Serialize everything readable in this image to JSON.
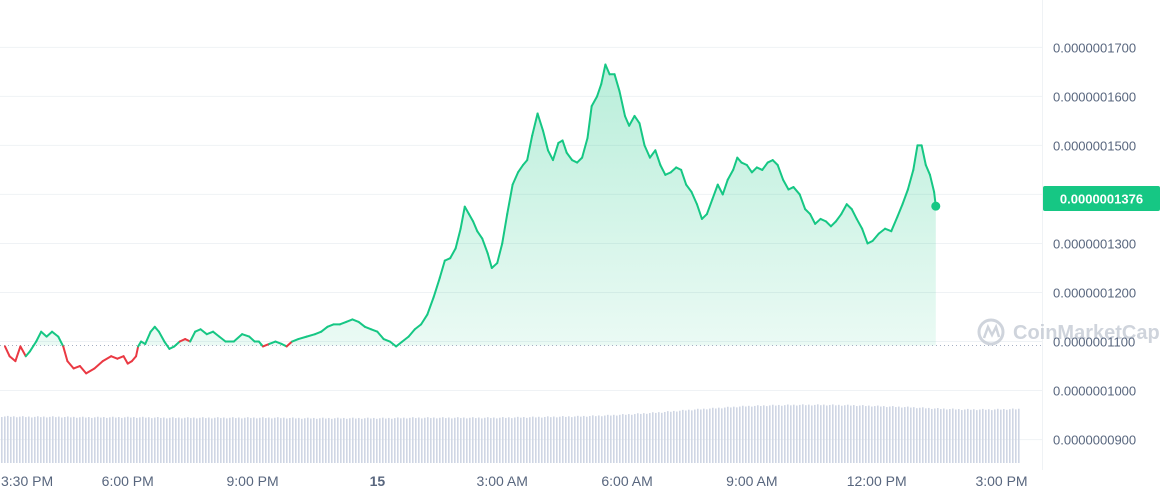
{
  "chart_data": {
    "type": "line",
    "watermark": "CoinMarketCap",
    "colors": {
      "up": "#16c784",
      "down": "#ea3943",
      "volume": "#cfd6e4",
      "grid": "#eff2f5",
      "baseline": "#a6b0c3",
      "axis_text": "#58667e"
    },
    "y_ticks": [
      "0.0000001700",
      "0.0000001600",
      "0.0000001500",
      "0.0000001400",
      "0.0000001300",
      "0.0000001200",
      "0.0000001100",
      "0.0000001000",
      "0.0000000900"
    ],
    "y_tick_values": [
      1.7e-07,
      1.6e-07,
      1.5e-07,
      1.4e-07,
      1.3e-07,
      1.2e-07,
      1.1e-07,
      1e-07,
      9e-08
    ],
    "ylim": [
      8.4e-08,
      1.77e-07
    ],
    "x_ticks": [
      {
        "label": "3:30 PM",
        "t": 15.5
      },
      {
        "label": "6:00 PM",
        "t": 18
      },
      {
        "label": "9:00 PM",
        "t": 21
      },
      {
        "label": "15",
        "t": 24
      },
      {
        "label": "3:00 AM",
        "t": 27
      },
      {
        "label": "6:00 AM",
        "t": 30
      },
      {
        "label": "9:00 AM",
        "t": 33
      },
      {
        "label": "12:00 PM",
        "t": 36
      },
      {
        "label": "3:00 PM",
        "t": 39
      }
    ],
    "xlim": [
      15.05,
      39.42
    ],
    "baseline_price": 1.092e-07,
    "current_price": "0.0000001376",
    "current_price_value": 1.376e-07,
    "series": [
      {
        "points": [
          [
            15.05,
            1.09e-07
          ],
          [
            15.16,
            1.07e-07
          ],
          [
            15.3,
            1.06e-07
          ],
          [
            15.42,
            1.09e-07
          ],
          [
            15.55,
            1.07e-07
          ],
          [
            15.65,
            1.08e-07
          ],
          [
            15.8,
            1.1e-07
          ],
          [
            15.92,
            1.12e-07
          ],
          [
            16.05,
            1.11e-07
          ],
          [
            16.18,
            1.12e-07
          ],
          [
            16.33,
            1.11e-07
          ],
          [
            16.45,
            1.09e-07
          ],
          [
            16.55,
            1.06e-07
          ],
          [
            16.7,
            1.045e-07
          ],
          [
            16.85,
            1.05e-07
          ],
          [
            17.0,
            1.035e-07
          ],
          [
            17.2,
            1.045e-07
          ],
          [
            17.4,
            1.06e-07
          ],
          [
            17.6,
            1.07e-07
          ],
          [
            17.75,
            1.065e-07
          ],
          [
            17.9,
            1.07e-07
          ],
          [
            18.0,
            1.055e-07
          ],
          [
            18.1,
            1.06e-07
          ],
          [
            18.2,
            1.07e-07
          ],
          [
            18.25,
            1.09e-07
          ],
          [
            18.32,
            1.1e-07
          ],
          [
            18.42,
            1.095e-07
          ],
          [
            18.55,
            1.12e-07
          ],
          [
            18.65,
            1.13e-07
          ],
          [
            18.75,
            1.12e-07
          ],
          [
            18.88,
            1.1e-07
          ],
          [
            19.0,
            1.085e-07
          ],
          [
            19.12,
            1.09e-07
          ],
          [
            19.25,
            1.1e-07
          ],
          [
            19.38,
            1.105e-07
          ],
          [
            19.5,
            1.1e-07
          ],
          [
            19.62,
            1.12e-07
          ],
          [
            19.75,
            1.125e-07
          ],
          [
            19.9,
            1.115e-07
          ],
          [
            20.05,
            1.12e-07
          ],
          [
            20.2,
            1.11e-07
          ],
          [
            20.35,
            1.1e-07
          ],
          [
            20.55,
            1.1e-07
          ],
          [
            20.75,
            1.115e-07
          ],
          [
            20.92,
            1.11e-07
          ],
          [
            21.05,
            1.1e-07
          ],
          [
            21.15,
            1.1e-07
          ],
          [
            21.25,
            1.09e-07
          ],
          [
            21.4,
            1.095e-07
          ],
          [
            21.55,
            1.1e-07
          ],
          [
            21.7,
            1.095e-07
          ],
          [
            21.82,
            1.09e-07
          ],
          [
            21.95,
            1.1e-07
          ],
          [
            22.1,
            1.105e-07
          ],
          [
            22.3,
            1.11e-07
          ],
          [
            22.5,
            1.115e-07
          ],
          [
            22.65,
            1.12e-07
          ],
          [
            22.8,
            1.13e-07
          ],
          [
            22.95,
            1.135e-07
          ],
          [
            23.1,
            1.135e-07
          ],
          [
            23.25,
            1.14e-07
          ],
          [
            23.4,
            1.145e-07
          ],
          [
            23.55,
            1.14e-07
          ],
          [
            23.7,
            1.13e-07
          ],
          [
            23.85,
            1.125e-07
          ],
          [
            24.0,
            1.12e-07
          ],
          [
            24.15,
            1.105e-07
          ],
          [
            24.3,
            1.1e-07
          ],
          [
            24.45,
            1.09e-07
          ],
          [
            24.6,
            1.1e-07
          ],
          [
            24.75,
            1.11e-07
          ],
          [
            24.9,
            1.125e-07
          ],
          [
            25.05,
            1.135e-07
          ],
          [
            25.2,
            1.155e-07
          ],
          [
            25.35,
            1.19e-07
          ],
          [
            25.5,
            1.23e-07
          ],
          [
            25.62,
            1.265e-07
          ],
          [
            25.75,
            1.27e-07
          ],
          [
            25.88,
            1.29e-07
          ],
          [
            26.0,
            1.33e-07
          ],
          [
            26.1,
            1.375e-07
          ],
          [
            26.2,
            1.36e-07
          ],
          [
            26.3,
            1.345e-07
          ],
          [
            26.4,
            1.325e-07
          ],
          [
            26.52,
            1.31e-07
          ],
          [
            26.65,
            1.28e-07
          ],
          [
            26.75,
            1.25e-07
          ],
          [
            26.88,
            1.26e-07
          ],
          [
            27.0,
            1.3e-07
          ],
          [
            27.12,
            1.36e-07
          ],
          [
            27.25,
            1.42e-07
          ],
          [
            27.38,
            1.445e-07
          ],
          [
            27.5,
            1.46e-07
          ],
          [
            27.6,
            1.47e-07
          ],
          [
            27.72,
            1.52e-07
          ],
          [
            27.85,
            1.565e-07
          ],
          [
            27.98,
            1.53e-07
          ],
          [
            28.1,
            1.49e-07
          ],
          [
            28.22,
            1.47e-07
          ],
          [
            28.35,
            1.505e-07
          ],
          [
            28.45,
            1.51e-07
          ],
          [
            28.55,
            1.485e-07
          ],
          [
            28.68,
            1.47e-07
          ],
          [
            28.8,
            1.465e-07
          ],
          [
            28.92,
            1.475e-07
          ],
          [
            29.05,
            1.515e-07
          ],
          [
            29.15,
            1.58e-07
          ],
          [
            29.28,
            1.6e-07
          ],
          [
            29.38,
            1.625e-07
          ],
          [
            29.48,
            1.665e-07
          ],
          [
            29.58,
            1.645e-07
          ],
          [
            29.7,
            1.645e-07
          ],
          [
            29.82,
            1.61e-07
          ],
          [
            29.95,
            1.56e-07
          ],
          [
            30.05,
            1.54e-07
          ],
          [
            30.18,
            1.56e-07
          ],
          [
            30.3,
            1.545e-07
          ],
          [
            30.42,
            1.5e-07
          ],
          [
            30.55,
            1.475e-07
          ],
          [
            30.68,
            1.49e-07
          ],
          [
            30.8,
            1.46e-07
          ],
          [
            30.92,
            1.44e-07
          ],
          [
            31.05,
            1.445e-07
          ],
          [
            31.18,
            1.455e-07
          ],
          [
            31.3,
            1.45e-07
          ],
          [
            31.42,
            1.42e-07
          ],
          [
            31.55,
            1.405e-07
          ],
          [
            31.68,
            1.38e-07
          ],
          [
            31.8,
            1.35e-07
          ],
          [
            31.92,
            1.36e-07
          ],
          [
            32.05,
            1.39e-07
          ],
          [
            32.18,
            1.42e-07
          ],
          [
            32.3,
            1.4e-07
          ],
          [
            32.42,
            1.43e-07
          ],
          [
            32.55,
            1.45e-07
          ],
          [
            32.65,
            1.475e-07
          ],
          [
            32.75,
            1.465e-07
          ],
          [
            32.88,
            1.46e-07
          ],
          [
            33.0,
            1.445e-07
          ],
          [
            33.12,
            1.455e-07
          ],
          [
            33.25,
            1.45e-07
          ],
          [
            33.38,
            1.465e-07
          ],
          [
            33.5,
            1.47e-07
          ],
          [
            33.62,
            1.46e-07
          ],
          [
            33.75,
            1.43e-07
          ],
          [
            33.88,
            1.41e-07
          ],
          [
            34.0,
            1.415e-07
          ],
          [
            34.15,
            1.4e-07
          ],
          [
            34.28,
            1.37e-07
          ],
          [
            34.4,
            1.36e-07
          ],
          [
            34.52,
            1.34e-07
          ],
          [
            34.65,
            1.35e-07
          ],
          [
            34.78,
            1.345e-07
          ],
          [
            34.9,
            1.335e-07
          ],
          [
            35.02,
            1.345e-07
          ],
          [
            35.15,
            1.36e-07
          ],
          [
            35.28,
            1.38e-07
          ],
          [
            35.4,
            1.37e-07
          ],
          [
            35.52,
            1.35e-07
          ],
          [
            35.65,
            1.33e-07
          ],
          [
            35.78,
            1.3e-07
          ],
          [
            35.9,
            1.305e-07
          ],
          [
            36.05,
            1.32e-07
          ],
          [
            36.2,
            1.33e-07
          ],
          [
            36.35,
            1.325e-07
          ],
          [
            36.5,
            1.355e-07
          ],
          [
            36.62,
            1.38e-07
          ],
          [
            36.75,
            1.41e-07
          ],
          [
            36.88,
            1.45e-07
          ],
          [
            36.98,
            1.5e-07
          ],
          [
            37.08,
            1.5e-07
          ],
          [
            37.18,
            1.46e-07
          ],
          [
            37.28,
            1.44e-07
          ],
          [
            37.38,
            1.405e-07
          ],
          [
            37.42,
            1.376e-07
          ]
        ]
      }
    ],
    "down_segments": [
      [
        15.05,
        15.6
      ],
      [
        16.45,
        18.25
      ],
      [
        19.3,
        19.5
      ],
      [
        21.25,
        21.45
      ],
      [
        21.8,
        22.0
      ]
    ],
    "volume": [
      1.0,
      0.99,
      0.99,
      0.98,
      0.98,
      0.98,
      0.97,
      0.97,
      0.97,
      0.97,
      0.97,
      0.96,
      0.96,
      0.96,
      0.96,
      0.97,
      0.97,
      0.97,
      0.97,
      0.98,
      0.99,
      1.0,
      1.02,
      1.05,
      1.09,
      1.14,
      1.18,
      1.22,
      1.24,
      1.25,
      1.25,
      1.24,
      1.22,
      1.2,
      1.17,
      1.15,
      1.15,
      1.16
    ]
  }
}
